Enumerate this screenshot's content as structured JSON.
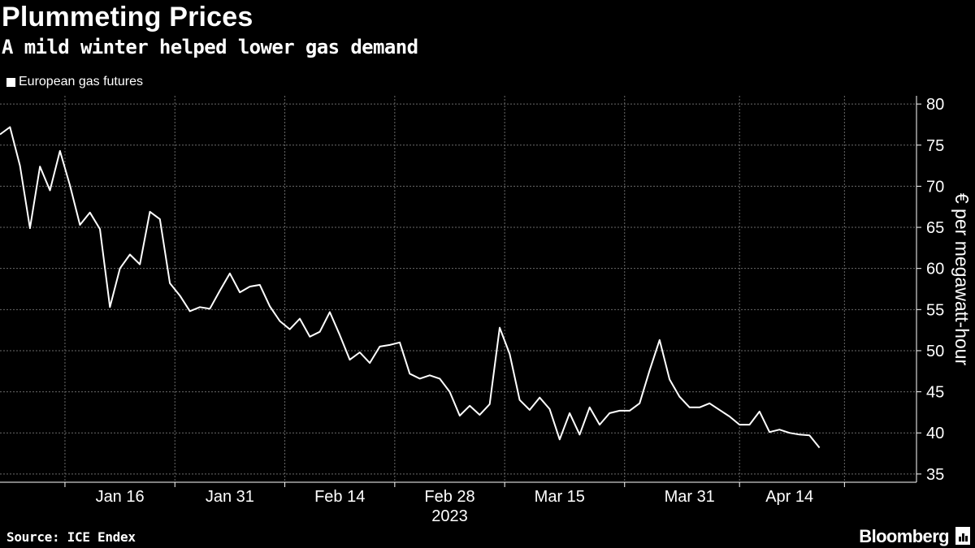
{
  "chart_data": {
    "type": "line",
    "title": "Plummeting Prices",
    "subtitle": "A mild winter helped lower gas demand",
    "legend": "European gas futures",
    "ylabel": "€ per megawatt-hour",
    "xlabel": "2023",
    "ylim": [
      34,
      81
    ],
    "yticks": [
      35,
      40,
      45,
      50,
      55,
      60,
      65,
      70,
      75,
      80
    ],
    "xticks": [
      {
        "label": "Jan 16",
        "index": 12
      },
      {
        "label": "Jan 31",
        "index": 23
      },
      {
        "label": "Feb 14",
        "index": 34
      },
      {
        "label": "Feb 28",
        "index": 45
      },
      {
        "label": "Mar 15",
        "index": 56
      },
      {
        "label": "Mar 31",
        "index": 69
      },
      {
        "label": "Apr 14",
        "index": 79
      }
    ],
    "x_count": 90,
    "series": [
      {
        "name": "European gas futures",
        "values": [
          76.3,
          77.2,
          72.5,
          64.9,
          72.4,
          69.5,
          74.3,
          70.1,
          65.3,
          66.8,
          64.8,
          55.3,
          60.0,
          61.7,
          60.5,
          66.9,
          66.0,
          58.2,
          56.7,
          54.8,
          55.3,
          55.1,
          57.3,
          59.4,
          57.1,
          57.8,
          58.0,
          55.4,
          53.6,
          52.6,
          53.9,
          51.7,
          52.3,
          54.7,
          51.9,
          48.9,
          49.8,
          48.5,
          50.5,
          50.7,
          51.0,
          47.2,
          46.6,
          47.0,
          46.6,
          45.0,
          42.1,
          43.3,
          42.2,
          43.5,
          52.8,
          49.6,
          44.0,
          42.8,
          44.3,
          42.9,
          39.2,
          42.4,
          39.8,
          43.1,
          41.0,
          42.4,
          42.7,
          42.7,
          43.6,
          47.6,
          51.3,
          46.5,
          44.4,
          43.1,
          43.1,
          43.6,
          42.8,
          42.0,
          41.0,
          41.0,
          42.6,
          40.1,
          40.4,
          40.0,
          39.8,
          39.7,
          38.2
        ]
      }
    ]
  },
  "source": "Source: ICE Endex",
  "brand": "Bloomberg"
}
